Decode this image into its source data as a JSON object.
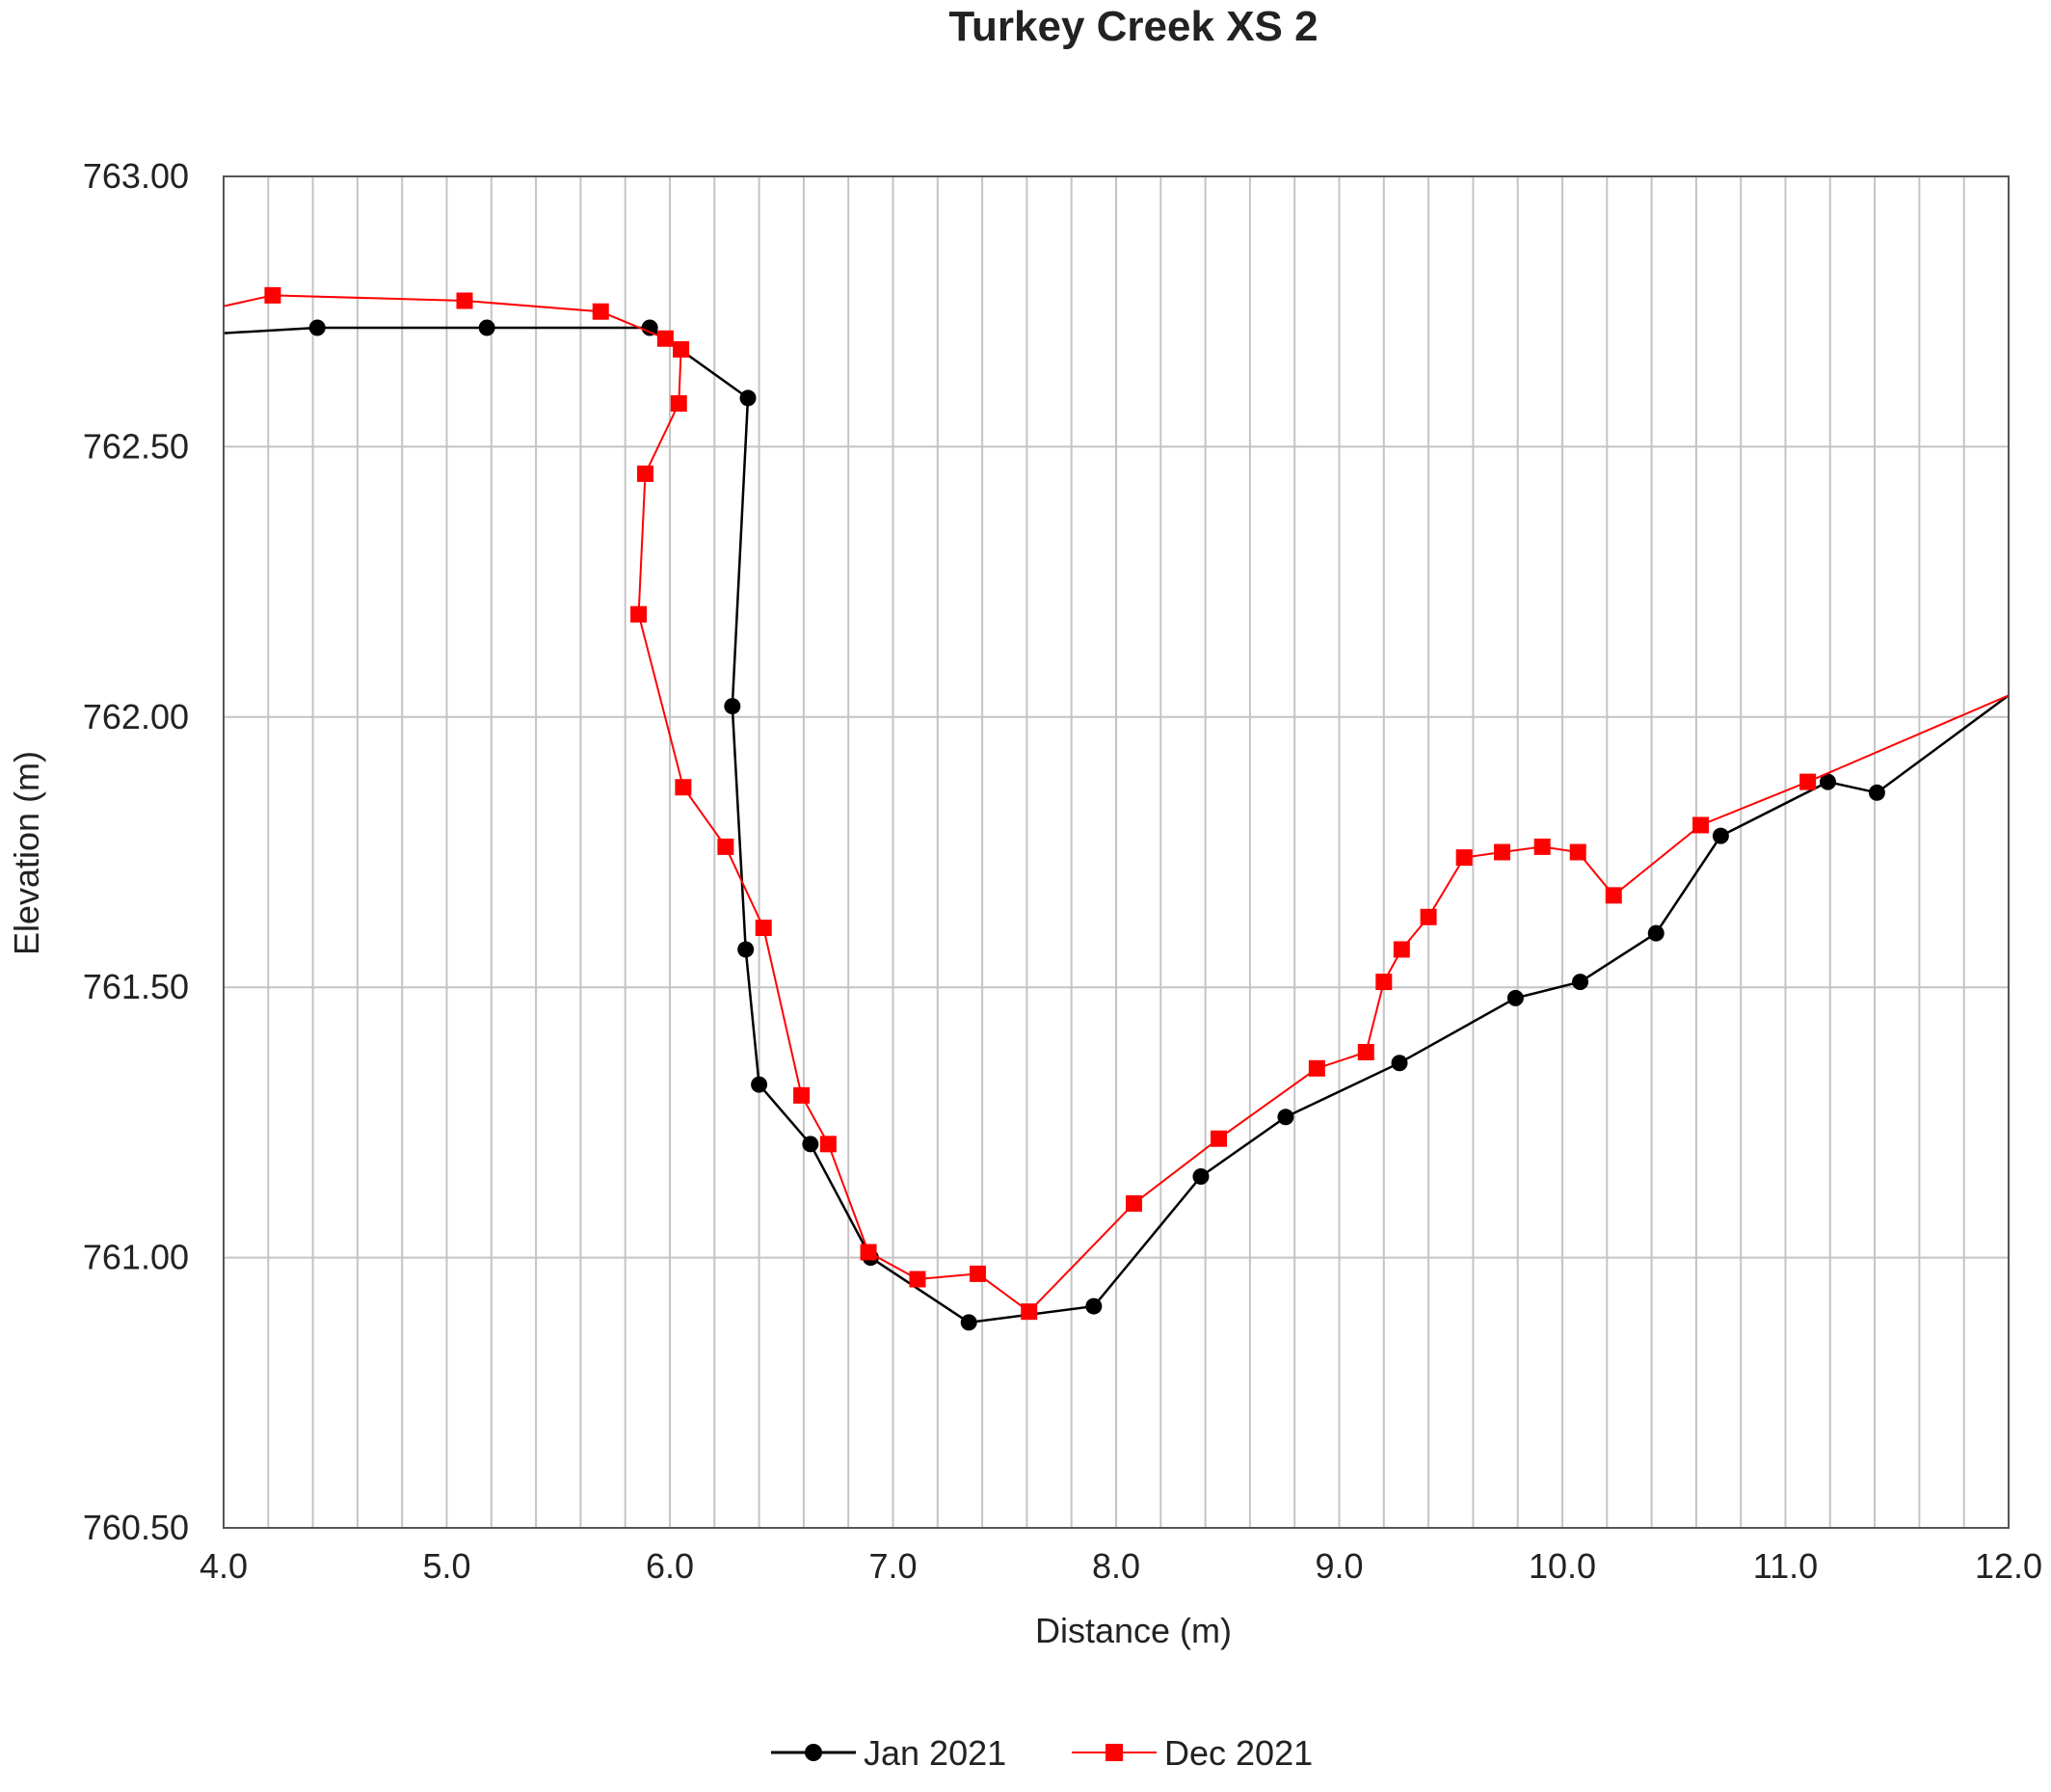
{
  "chart_data": {
    "type": "line",
    "title": "Turkey Creek XS 2",
    "xlabel": "Distance (m)",
    "ylabel": "Elevation (m)",
    "xlim": [
      4.0,
      12.0
    ],
    "ylim": [
      760.5,
      763.0
    ],
    "x_ticks": [
      4.0,
      5.0,
      6.0,
      7.0,
      8.0,
      9.0,
      10.0,
      11.0,
      12.0
    ],
    "x_tick_labels": [
      "4.0",
      "5.0",
      "6.0",
      "7.0",
      "8.0",
      "9.0",
      "10.0",
      "11.0",
      "12.0"
    ],
    "y_ticks": [
      760.5,
      761.0,
      761.5,
      762.0,
      762.5,
      763.0
    ],
    "y_tick_labels": [
      "760.50",
      "761.00",
      "761.50",
      "762.00",
      "762.50",
      "763.00"
    ],
    "x_minor_step": 0.2,
    "grid": true,
    "legend_position": "bottom-center",
    "series": [
      {
        "name": "Jan 2021",
        "color": "#000000",
        "marker": "circle",
        "line_start": [
          4.0,
          762.71
        ],
        "line_end": [
          12.0,
          762.04
        ],
        "points": [
          [
            4.42,
            762.72
          ],
          [
            5.18,
            762.72
          ],
          [
            5.91,
            762.72
          ],
          [
            6.35,
            762.59
          ],
          [
            6.28,
            762.02
          ],
          [
            6.34,
            761.57
          ],
          [
            6.4,
            761.32
          ],
          [
            6.63,
            761.21
          ],
          [
            6.9,
            761.0
          ],
          [
            7.34,
            760.88
          ],
          [
            7.9,
            760.91
          ],
          [
            8.38,
            761.15
          ],
          [
            8.76,
            761.26
          ],
          [
            9.27,
            761.36
          ],
          [
            9.79,
            761.48
          ],
          [
            10.08,
            761.51
          ],
          [
            10.42,
            761.6
          ],
          [
            10.71,
            761.78
          ],
          [
            11.19,
            761.88
          ],
          [
            11.41,
            761.86
          ]
        ]
      },
      {
        "name": "Dec 2021",
        "color": "#ff0000",
        "marker": "square",
        "line_start": [
          4.0,
          762.76
        ],
        "line_end": [
          12.0,
          762.04
        ],
        "points": [
          [
            4.22,
            762.78
          ],
          [
            5.08,
            762.77
          ],
          [
            5.69,
            762.75
          ],
          [
            5.98,
            762.7
          ],
          [
            6.05,
            762.68
          ],
          [
            6.04,
            762.58
          ],
          [
            5.89,
            762.45
          ],
          [
            5.86,
            762.19
          ],
          [
            6.06,
            761.87
          ],
          [
            6.25,
            761.76
          ],
          [
            6.42,
            761.61
          ],
          [
            6.59,
            761.3
          ],
          [
            6.71,
            761.21
          ],
          [
            6.89,
            761.01
          ],
          [
            7.11,
            760.96
          ],
          [
            7.38,
            760.97
          ],
          [
            7.61,
            760.9
          ],
          [
            8.08,
            761.1
          ],
          [
            8.46,
            761.22
          ],
          [
            8.9,
            761.35
          ],
          [
            9.12,
            761.38
          ],
          [
            9.2,
            761.51
          ],
          [
            9.28,
            761.57
          ],
          [
            9.4,
            761.63
          ],
          [
            9.56,
            761.74
          ],
          [
            9.73,
            761.75
          ],
          [
            9.91,
            761.76
          ],
          [
            10.07,
            761.75
          ],
          [
            10.23,
            761.67
          ],
          [
            10.62,
            761.8
          ],
          [
            11.1,
            761.88
          ]
        ]
      }
    ]
  }
}
